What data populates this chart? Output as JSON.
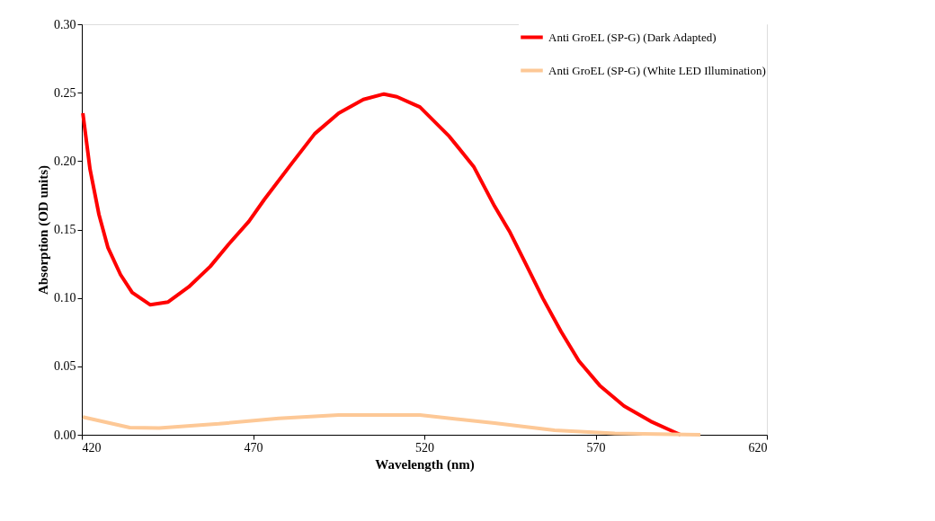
{
  "chart_data": {
    "type": "line",
    "xlabel": "Wavelength (nm)",
    "ylabel": "Absorption    (OD units)",
    "xlim": [
      420,
      620
    ],
    "xticks": [
      420,
      470,
      520,
      570,
      620
    ],
    "ylim": [
      0,
      0.3
    ],
    "yticks": [
      {
        "value": 0,
        "label": "0.00"
      },
      {
        "value": 0.05,
        "label": "0.05"
      },
      {
        "value": 0.1,
        "label": "0.10"
      },
      {
        "value": 0.15,
        "label": "0.15"
      },
      {
        "value": 0.2,
        "label": "0.20"
      },
      {
        "value": 0.25,
        "label": "0.25"
      },
      {
        "value": 0.3,
        "label": "0.30"
      }
    ],
    "grid": false,
    "legend": "top right",
    "marker": "none",
    "line_style": "solid",
    "series": [
      {
        "name": "Anti GroEL (SP-G) (Dark Adapted)",
        "color": "#ff0000",
        "x": [
          420.3,
          422.4,
          425,
          427.6,
          431.3,
          434.7,
          440,
          445.2,
          451.2,
          457.5,
          462.8,
          468.8,
          473.3,
          481.2,
          488,
          495,
          502.2,
          508.2,
          512,
          516.9,
          518.7,
          527.3,
          534.4,
          540.5,
          545,
          549.4,
          554.6,
          559.9,
          565.1,
          571.2,
          578.3,
          586.1,
          593,
          594.8
        ],
        "values": [
          0.235,
          0.194,
          0.161,
          0.137,
          0.117,
          0.104,
          0.095,
          0.097,
          0.108,
          0.123,
          0.139,
          0.156,
          0.172,
          0.198,
          0.22,
          0.235,
          0.245,
          0.249,
          0.247,
          0.2415,
          0.2395,
          0.218,
          0.196,
          0.167,
          0.148,
          0.126,
          0.0997,
          0.0755,
          0.054,
          0.036,
          0.021,
          0.0098,
          0.002,
          0.0
        ]
      },
      {
        "name": "Anti GroEL (SP-G) (White LED Illumination)",
        "color": "#fdc896",
        "x": [
          420.3,
          434,
          442.6,
          460,
          477.5,
          495,
          512.6,
          518.7,
          540.5,
          558,
          575.6,
          600.6
        ],
        "values": [
          0.013,
          0.0053,
          0.005,
          0.008,
          0.012,
          0.0144,
          0.0144,
          0.0144,
          0.0085,
          0.0033,
          0.001,
          0.0
        ]
      }
    ]
  }
}
